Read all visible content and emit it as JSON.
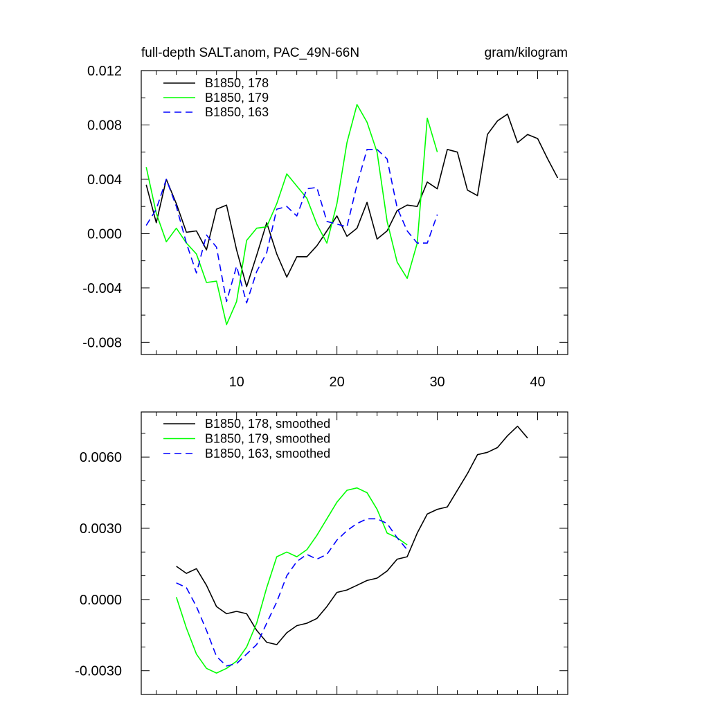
{
  "colors": {
    "black": "#000000",
    "green": "#00ff00",
    "blue": "#0000ff"
  },
  "chart_data": [
    {
      "type": "line",
      "title": "full-depth SALT.anom, PAC_49N-66N",
      "units": "gram/kilogram",
      "xlim": [
        0.5,
        43
      ],
      "ylim": [
        -0.0089,
        0.012
      ],
      "xticks": [
        10,
        20,
        30,
        40
      ],
      "xtick_labels": [
        "10",
        "20",
        "30",
        "40"
      ],
      "yticks": [
        0.012,
        0.008,
        0.004,
        0.0,
        -0.004,
        -0.008
      ],
      "ytick_labels": [
        "0.012",
        "0.008",
        "0.004",
        "0.000",
        "-0.004",
        "-0.008"
      ],
      "series": [
        {
          "name": "B1850, 178",
          "color": "#000000",
          "dash": "solid",
          "x": [
            1,
            2,
            3,
            4,
            5,
            6,
            7,
            8,
            9,
            10,
            11,
            12,
            13,
            14,
            15,
            16,
            17,
            18,
            19,
            20,
            21,
            22,
            23,
            24,
            25,
            26,
            27,
            28,
            29,
            30,
            31,
            32,
            33,
            34,
            35,
            36,
            37,
            38,
            39,
            40,
            41,
            42
          ],
          "values": [
            0.0036,
            0.0008,
            0.004,
            0.0022,
            0.0001,
            0.0002,
            -0.0012,
            0.0018,
            0.0021,
            -0.0012,
            -0.0039,
            -0.0016,
            0.0008,
            -0.0015,
            -0.0032,
            -0.0017,
            -0.0017,
            -0.0009,
            0.0002,
            0.0013,
            -0.0002,
            0.0004,
            0.0023,
            -0.0004,
            0.0002,
            0.0017,
            0.0021,
            0.002,
            0.0038,
            0.0033,
            0.0062,
            0.006,
            0.0032,
            0.0028,
            0.0073,
            0.0083,
            0.0088,
            0.0067,
            0.0073,
            0.007,
            0.0055,
            0.0041
          ]
        },
        {
          "name": "B1850, 179",
          "color": "#00ff00",
          "dash": "solid",
          "x": [
            1,
            2,
            3,
            4,
            5,
            6,
            7,
            8,
            9,
            10,
            11,
            12,
            13,
            14,
            15,
            16,
            17,
            18,
            19,
            20,
            21,
            22,
            23,
            24,
            25,
            26,
            27,
            28,
            29,
            30
          ],
          "values": [
            0.0049,
            0.0015,
            -0.0006,
            0.0004,
            -0.0007,
            -0.0015,
            -0.0036,
            -0.0035,
            -0.0067,
            -0.005,
            -0.0005,
            0.0004,
            0.0005,
            0.0022,
            0.0044,
            0.0035,
            0.0026,
            0.0007,
            -0.0007,
            0.0022,
            0.0067,
            0.0095,
            0.0082,
            0.006,
            0.0009,
            -0.0021,
            -0.0033,
            -0.0007,
            0.0085,
            0.006
          ]
        },
        {
          "name": "B1850, 163",
          "color": "#0000ff",
          "dash": "dashed",
          "x": [
            1,
            2,
            3,
            4,
            5,
            6,
            7,
            8,
            9,
            10,
            11,
            12,
            13,
            14,
            15,
            16,
            17,
            18,
            19,
            20,
            21,
            22,
            23,
            24,
            25,
            26,
            27,
            28,
            29,
            30
          ],
          "values": [
            0.0006,
            0.0018,
            0.004,
            0.002,
            -0.0007,
            -0.0029,
            -0.0001,
            -0.001,
            -0.005,
            -0.0024,
            -0.0051,
            -0.0028,
            -0.0014,
            0.0018,
            0.002,
            0.0013,
            0.0033,
            0.0034,
            0.0009,
            0.0007,
            0.0005,
            0.0036,
            0.0062,
            0.0062,
            0.0055,
            0.0019,
            0.0002,
            -0.0007,
            -0.0007,
            0.0014
          ]
        }
      ]
    },
    {
      "type": "line",
      "xlim": [
        0.5,
        43
      ],
      "ylim": [
        -0.004,
        0.0079
      ],
      "xticks": [
        10,
        20,
        30,
        40
      ],
      "yticks": [
        0.006,
        0.003,
        0.0,
        -0.003
      ],
      "ytick_labels": [
        "0.0060",
        "0.0030",
        "0.0000",
        "-0.0030"
      ],
      "series": [
        {
          "name": "B1850, 178, smoothed",
          "color": "#000000",
          "dash": "solid",
          "x": [
            4,
            5,
            6,
            7,
            8,
            9,
            10,
            11,
            12,
            13,
            14,
            15,
            16,
            17,
            18,
            19,
            20,
            21,
            22,
            23,
            24,
            25,
            26,
            27,
            28,
            29,
            30,
            31,
            32,
            33,
            34,
            35,
            36,
            37,
            38,
            39
          ],
          "values": [
            0.0014,
            0.0011,
            0.0013,
            0.0006,
            -0.0003,
            -0.0006,
            -0.0005,
            -0.0006,
            -0.0013,
            -0.0018,
            -0.0019,
            -0.0014,
            -0.0011,
            -0.001,
            -0.0008,
            -0.0003,
            0.0003,
            0.0004,
            0.0006,
            0.0008,
            0.0009,
            0.0012,
            0.0017,
            0.0018,
            0.0028,
            0.0036,
            0.0038,
            0.0039,
            0.0046,
            0.0053,
            0.0061,
            0.0062,
            0.0064,
            0.0069,
            0.0073,
            0.0068
          ]
        },
        {
          "name": "B1850, 179, smoothed",
          "color": "#00ff00",
          "dash": "solid",
          "x": [
            4,
            5,
            6,
            7,
            8,
            9,
            10,
            11,
            12,
            13,
            14,
            15,
            16,
            17,
            18,
            19,
            20,
            21,
            22,
            23,
            24,
            25,
            26,
            27
          ],
          "values": [
            0.0001,
            -0.0012,
            -0.0023,
            -0.0029,
            -0.0031,
            -0.0029,
            -0.0026,
            -0.002,
            -0.001,
            0.0005,
            0.0018,
            0.002,
            0.0018,
            0.0021,
            0.0027,
            0.0034,
            0.0041,
            0.0046,
            0.0047,
            0.0045,
            0.0038,
            0.0028,
            0.0026,
            0.0023
          ]
        },
        {
          "name": "B1850, 163, smoothed",
          "color": "#0000ff",
          "dash": "dashed",
          "x": [
            4,
            5,
            6,
            7,
            8,
            9,
            10,
            11,
            12,
            13,
            14,
            15,
            16,
            17,
            18,
            19,
            20,
            21,
            22,
            23,
            24,
            25,
            26,
            27
          ],
          "values": [
            0.0007,
            0.0005,
            -0.0003,
            -0.0013,
            -0.0024,
            -0.0028,
            -0.0027,
            -0.0023,
            -0.0019,
            -0.001,
            -0.0001,
            0.001,
            0.0016,
            0.0019,
            0.0017,
            0.0019,
            0.0025,
            0.0029,
            0.0032,
            0.0034,
            0.0034,
            0.0032,
            0.0026,
            0.0021
          ]
        }
      ]
    }
  ]
}
